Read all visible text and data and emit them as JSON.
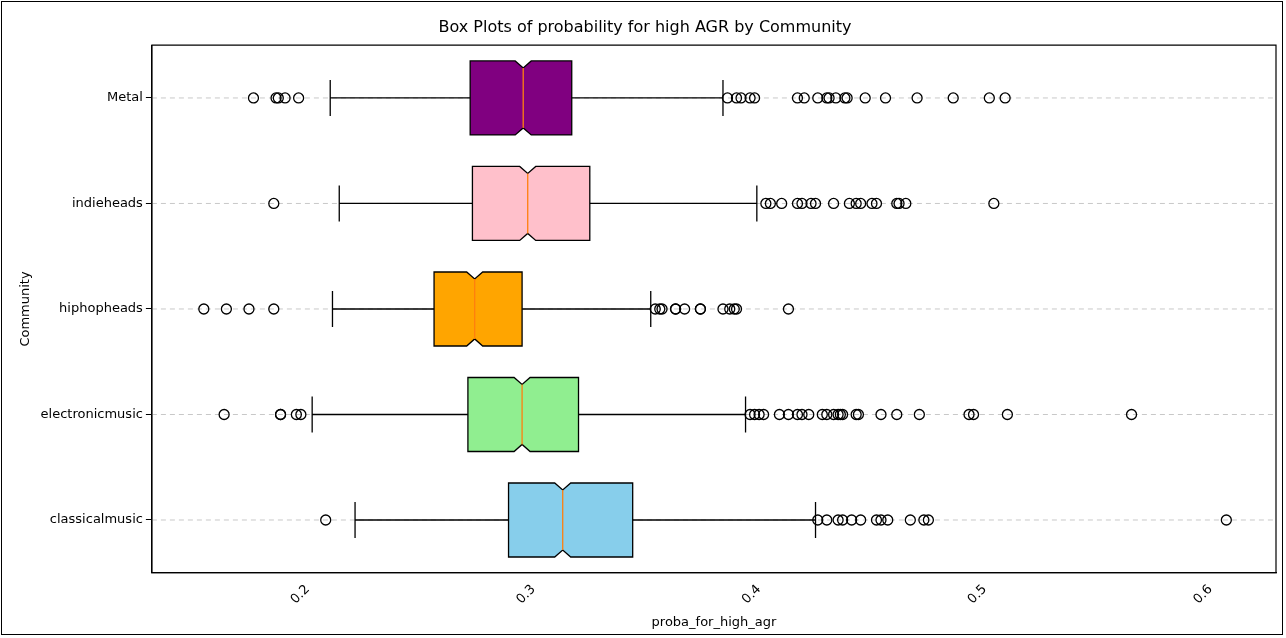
{
  "chart_data": {
    "type": "box",
    "title": "Box Plots of probability for high AGR by Community",
    "xlabel": "proba_for_high_agr",
    "ylabel": "Community",
    "orientation": "horizontal",
    "categories": [
      "Metal",
      "indieheads",
      "hiphopheads",
      "electronicmusic",
      "classicalmusic"
    ],
    "colors": [
      "#800080",
      "#ffc0cb",
      "#ffa500",
      "#90ee90",
      "#87ceeb"
    ],
    "boxes": [
      {
        "low": 0.21,
        "q1": 0.272,
        "median": 0.2955,
        "q3": 0.317,
        "high": 0.384,
        "outliers": [
          0.176,
          0.186,
          0.187,
          0.19,
          0.196,
          0.386,
          0.39,
          0.392,
          0.396,
          0.398,
          0.417,
          0.42,
          0.426,
          0.43,
          0.431,
          0.434,
          0.438,
          0.439,
          0.447,
          0.456,
          0.47,
          0.486,
          0.502,
          0.509
        ]
      },
      {
        "low": 0.214,
        "q1": 0.273,
        "median": 0.2975,
        "q3": 0.325,
        "high": 0.399,
        "outliers": [
          0.185,
          0.403,
          0.405,
          0.41,
          0.417,
          0.419,
          0.423,
          0.425,
          0.433,
          0.44,
          0.443,
          0.445,
          0.45,
          0.452,
          0.461,
          0.462,
          0.465,
          0.504
        ]
      },
      {
        "low": 0.211,
        "q1": 0.256,
        "median": 0.274,
        "q3": 0.295,
        "high": 0.352,
        "outliers": [
          0.154,
          0.164,
          0.174,
          0.185,
          0.354,
          0.356,
          0.357,
          0.363,
          0.363,
          0.367,
          0.374,
          0.374,
          0.384,
          0.387,
          0.389,
          0.39,
          0.413
        ]
      },
      {
        "low": 0.202,
        "q1": 0.271,
        "median": 0.295,
        "q3": 0.32,
        "high": 0.394,
        "outliers": [
          0.163,
          0.188,
          0.188,
          0.195,
          0.197,
          0.396,
          0.398,
          0.4,
          0.402,
          0.409,
          0.413,
          0.417,
          0.419,
          0.422,
          0.428,
          0.43,
          0.433,
          0.435,
          0.436,
          0.437,
          0.443,
          0.444,
          0.454,
          0.461,
          0.471,
          0.493,
          0.495,
          0.51,
          0.565
        ]
      },
      {
        "low": 0.221,
        "q1": 0.289,
        "median": 0.313,
        "q3": 0.344,
        "high": 0.425,
        "outliers": [
          0.208,
          0.426,
          0.43,
          0.435,
          0.437,
          0.441,
          0.445,
          0.452,
          0.454,
          0.457,
          0.467,
          0.473,
          0.475,
          0.607
        ]
      }
    ],
    "xlim": [
      0.131,
      0.629
    ],
    "xticks": [
      0.2,
      0.3,
      0.4,
      0.5,
      0.6
    ],
    "grid": "y",
    "legend": false
  }
}
